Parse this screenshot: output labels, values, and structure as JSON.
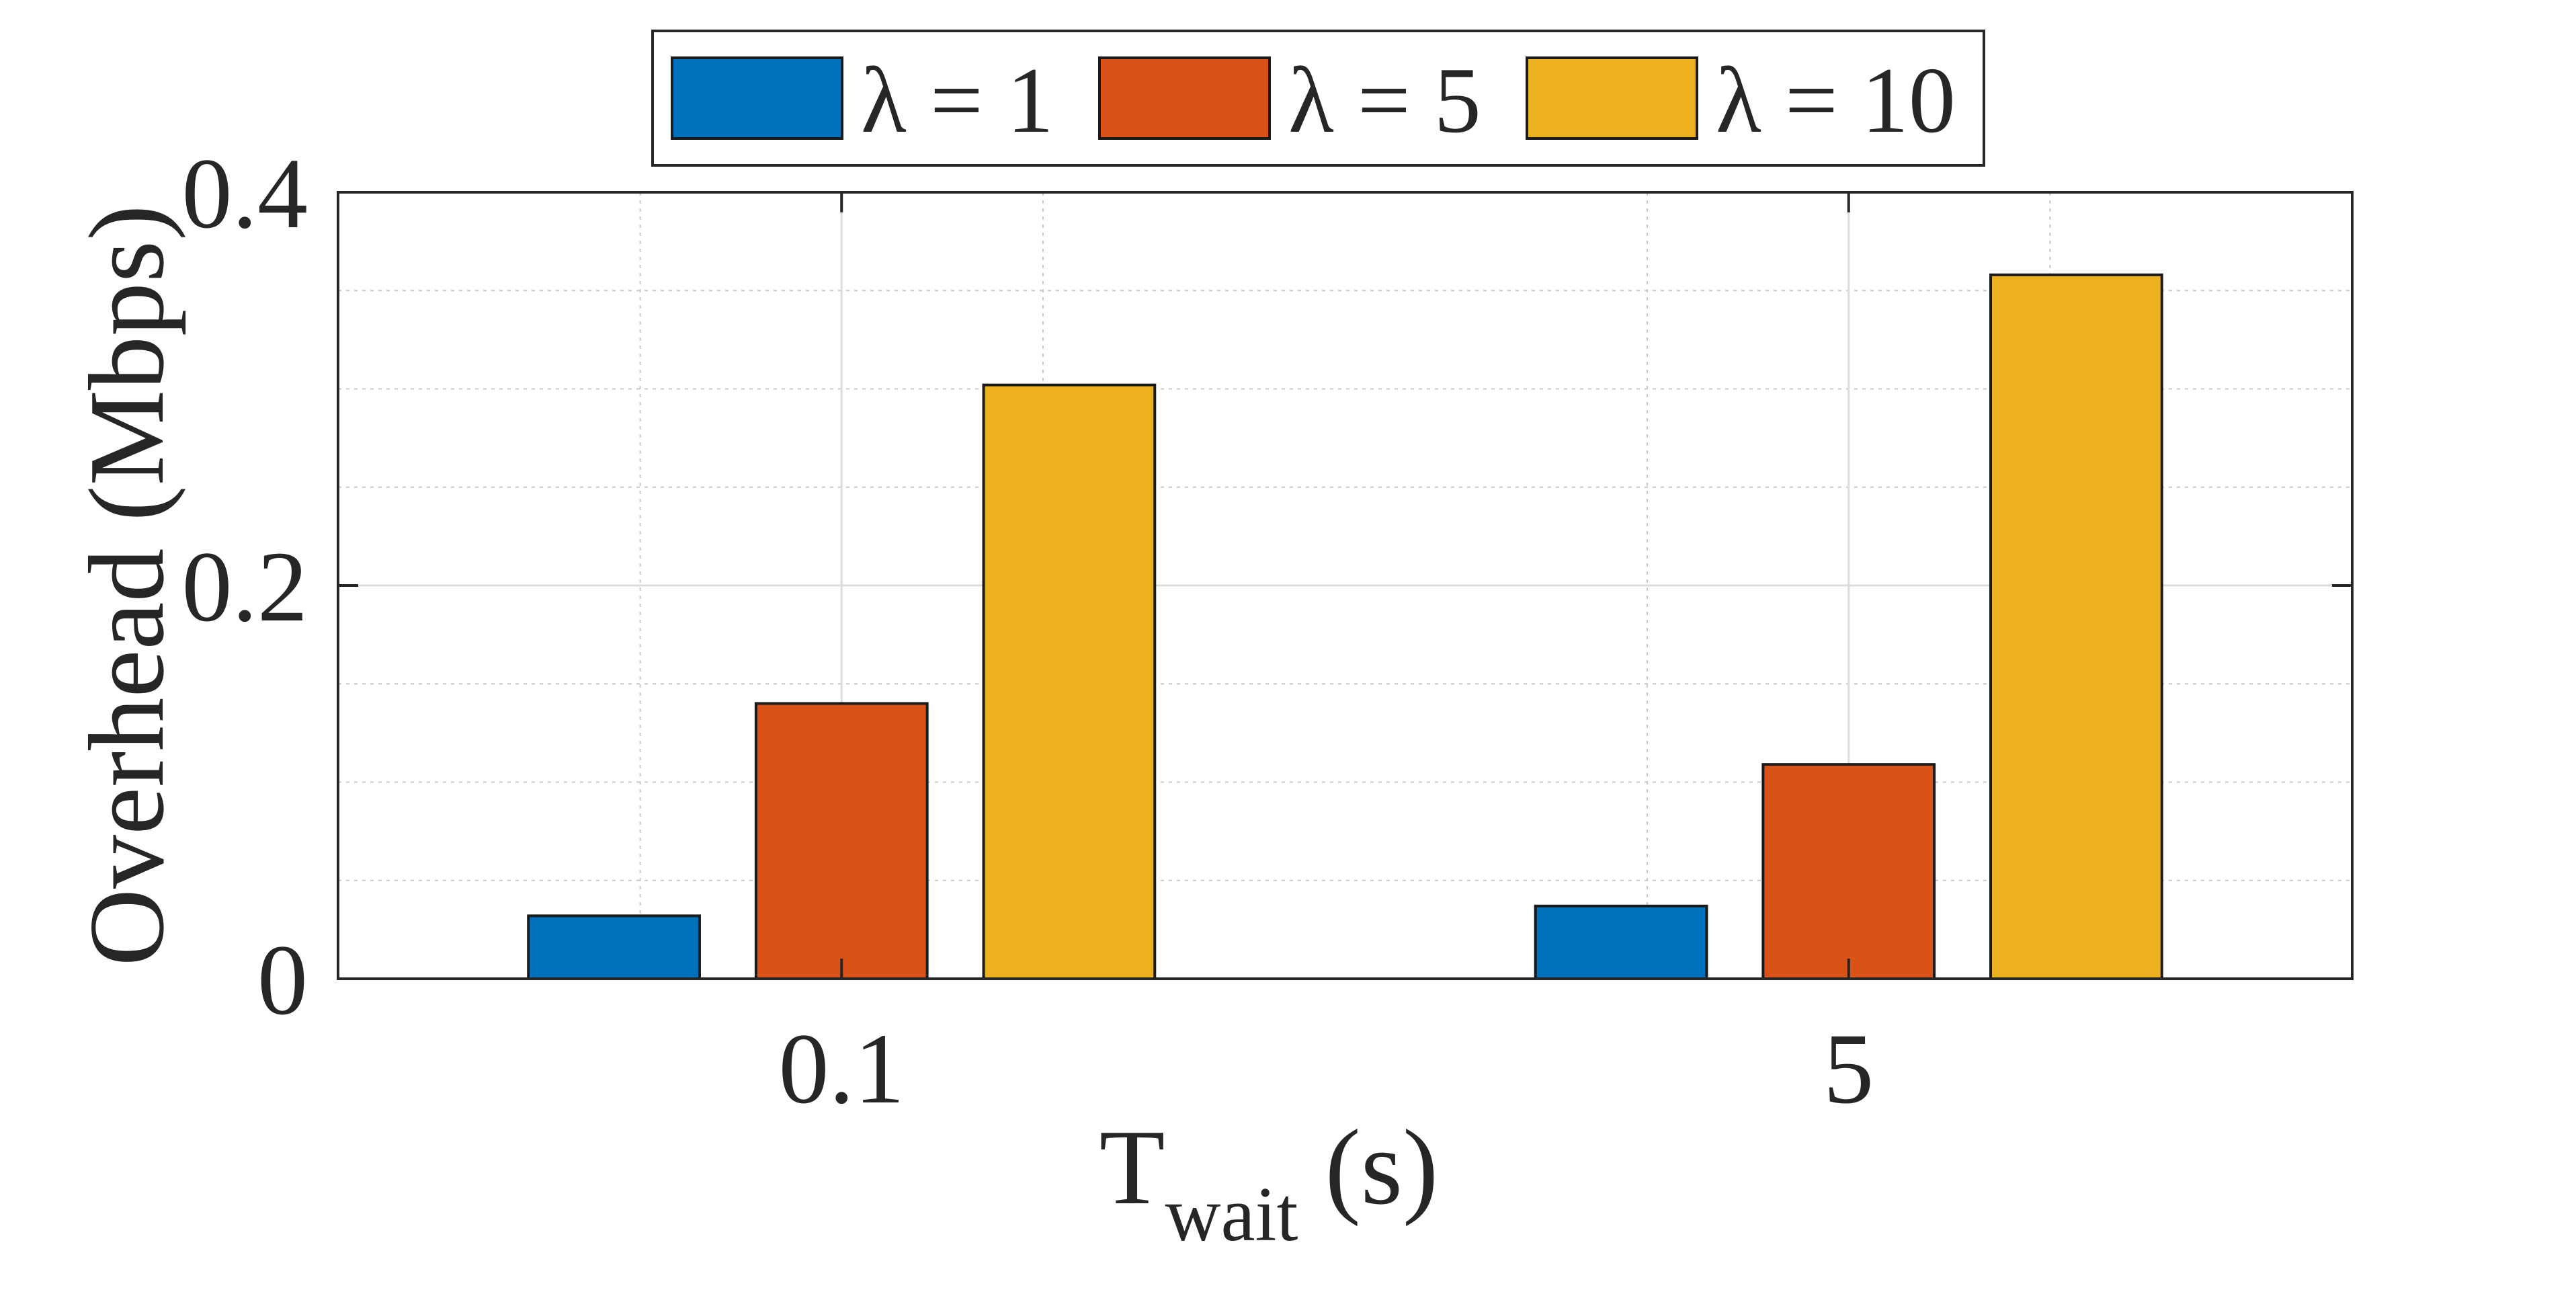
{
  "chart_data": {
    "type": "bar",
    "categories": [
      "0.1",
      "5"
    ],
    "series": [
      {
        "name": "λ = 1",
        "color": "#0072BD",
        "values": [
          0.032,
          0.037
        ]
      },
      {
        "name": "λ = 5",
        "color": "#D95319",
        "values": [
          0.14,
          0.109
        ]
      },
      {
        "name": "λ = 10",
        "color": "#EDB120",
        "values": [
          0.302,
          0.358
        ]
      }
    ],
    "title": "",
    "xlabel": {
      "main": "T",
      "subscript": "wait",
      "suffix": " (s)"
    },
    "ylabel": "Overhead (Mbps)",
    "ylim": [
      0,
      0.4
    ],
    "yticks": [
      0,
      0.2,
      0.4
    ],
    "ytick_labels": [
      "0",
      "0.2",
      "0.4"
    ],
    "grid": true,
    "minor_grid": true,
    "legend": {
      "position": "top-center",
      "orientation": "horizontal",
      "symbol": "λ"
    }
  }
}
